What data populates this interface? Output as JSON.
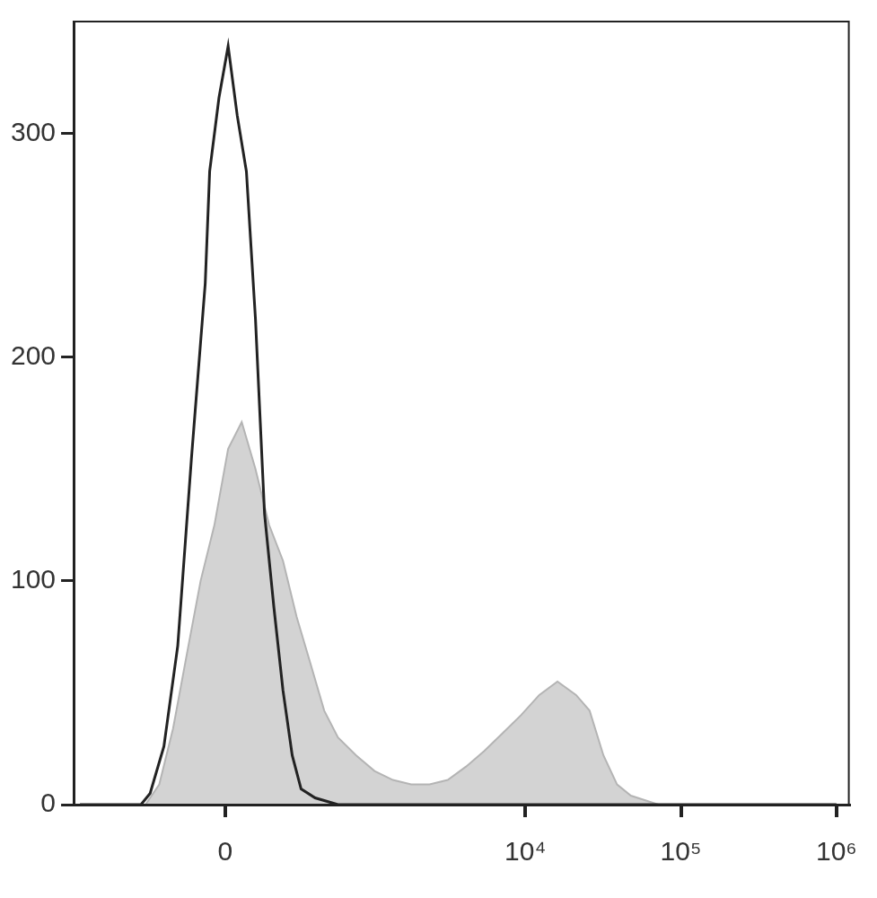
{
  "chart_data": {
    "type": "line",
    "xlim": [
      -1100,
      1200000
    ],
    "xticks": [
      0,
      {
        "value": 10000,
        "label": "10⁴"
      },
      {
        "value": 100000,
        "label": "10⁵"
      },
      {
        "value": 1000000,
        "label": "10⁶"
      }
    ],
    "ylim": [
      0,
      350
    ],
    "yticks": [
      0,
      100,
      200,
      300
    ],
    "grid": false,
    "series": [
      {
        "color": "#222222",
        "line_style": "solid",
        "x": [
          -1000,
          -377,
          -320,
          -245,
          -180,
          -123,
          -71,
          -55,
          -22,
          10,
          42,
          75,
          109,
          145,
          185,
          227,
          274,
          324,
          415,
          603,
          923,
          1000000
        ],
        "values": [
          0,
          0,
          5,
          26,
          71,
          155,
          233,
          283,
          316,
          339,
          308,
          283,
          217,
          130,
          88,
          51,
          22,
          7,
          3,
          0,
          0,
          0
        ]
      },
      {
        "color": "#d3d3d3",
        "line_style": "filled",
        "x": [
          -1000,
          -348,
          -269,
          -201,
          -142,
          -88,
          -38,
          10,
          58,
          109,
          164,
          227,
          298,
          383,
          483,
          603,
          802,
          1062,
          1400,
          1840,
          2420,
          3170,
          4160,
          5450,
          7170,
          9390,
          12300,
          16100,
          21200,
          25900,
          31800,
          38900,
          47700,
          58500,
          71700,
          1000000
        ],
        "values": [
          0,
          0,
          9,
          34,
          67,
          100,
          125,
          159,
          171,
          150,
          125,
          109,
          84,
          63,
          42,
          30,
          22,
          15,
          11,
          9,
          9,
          11,
          17,
          24,
          32,
          40,
          49,
          55,
          49,
          42,
          22,
          9,
          4,
          2,
          0,
          0
        ]
      }
    ]
  }
}
